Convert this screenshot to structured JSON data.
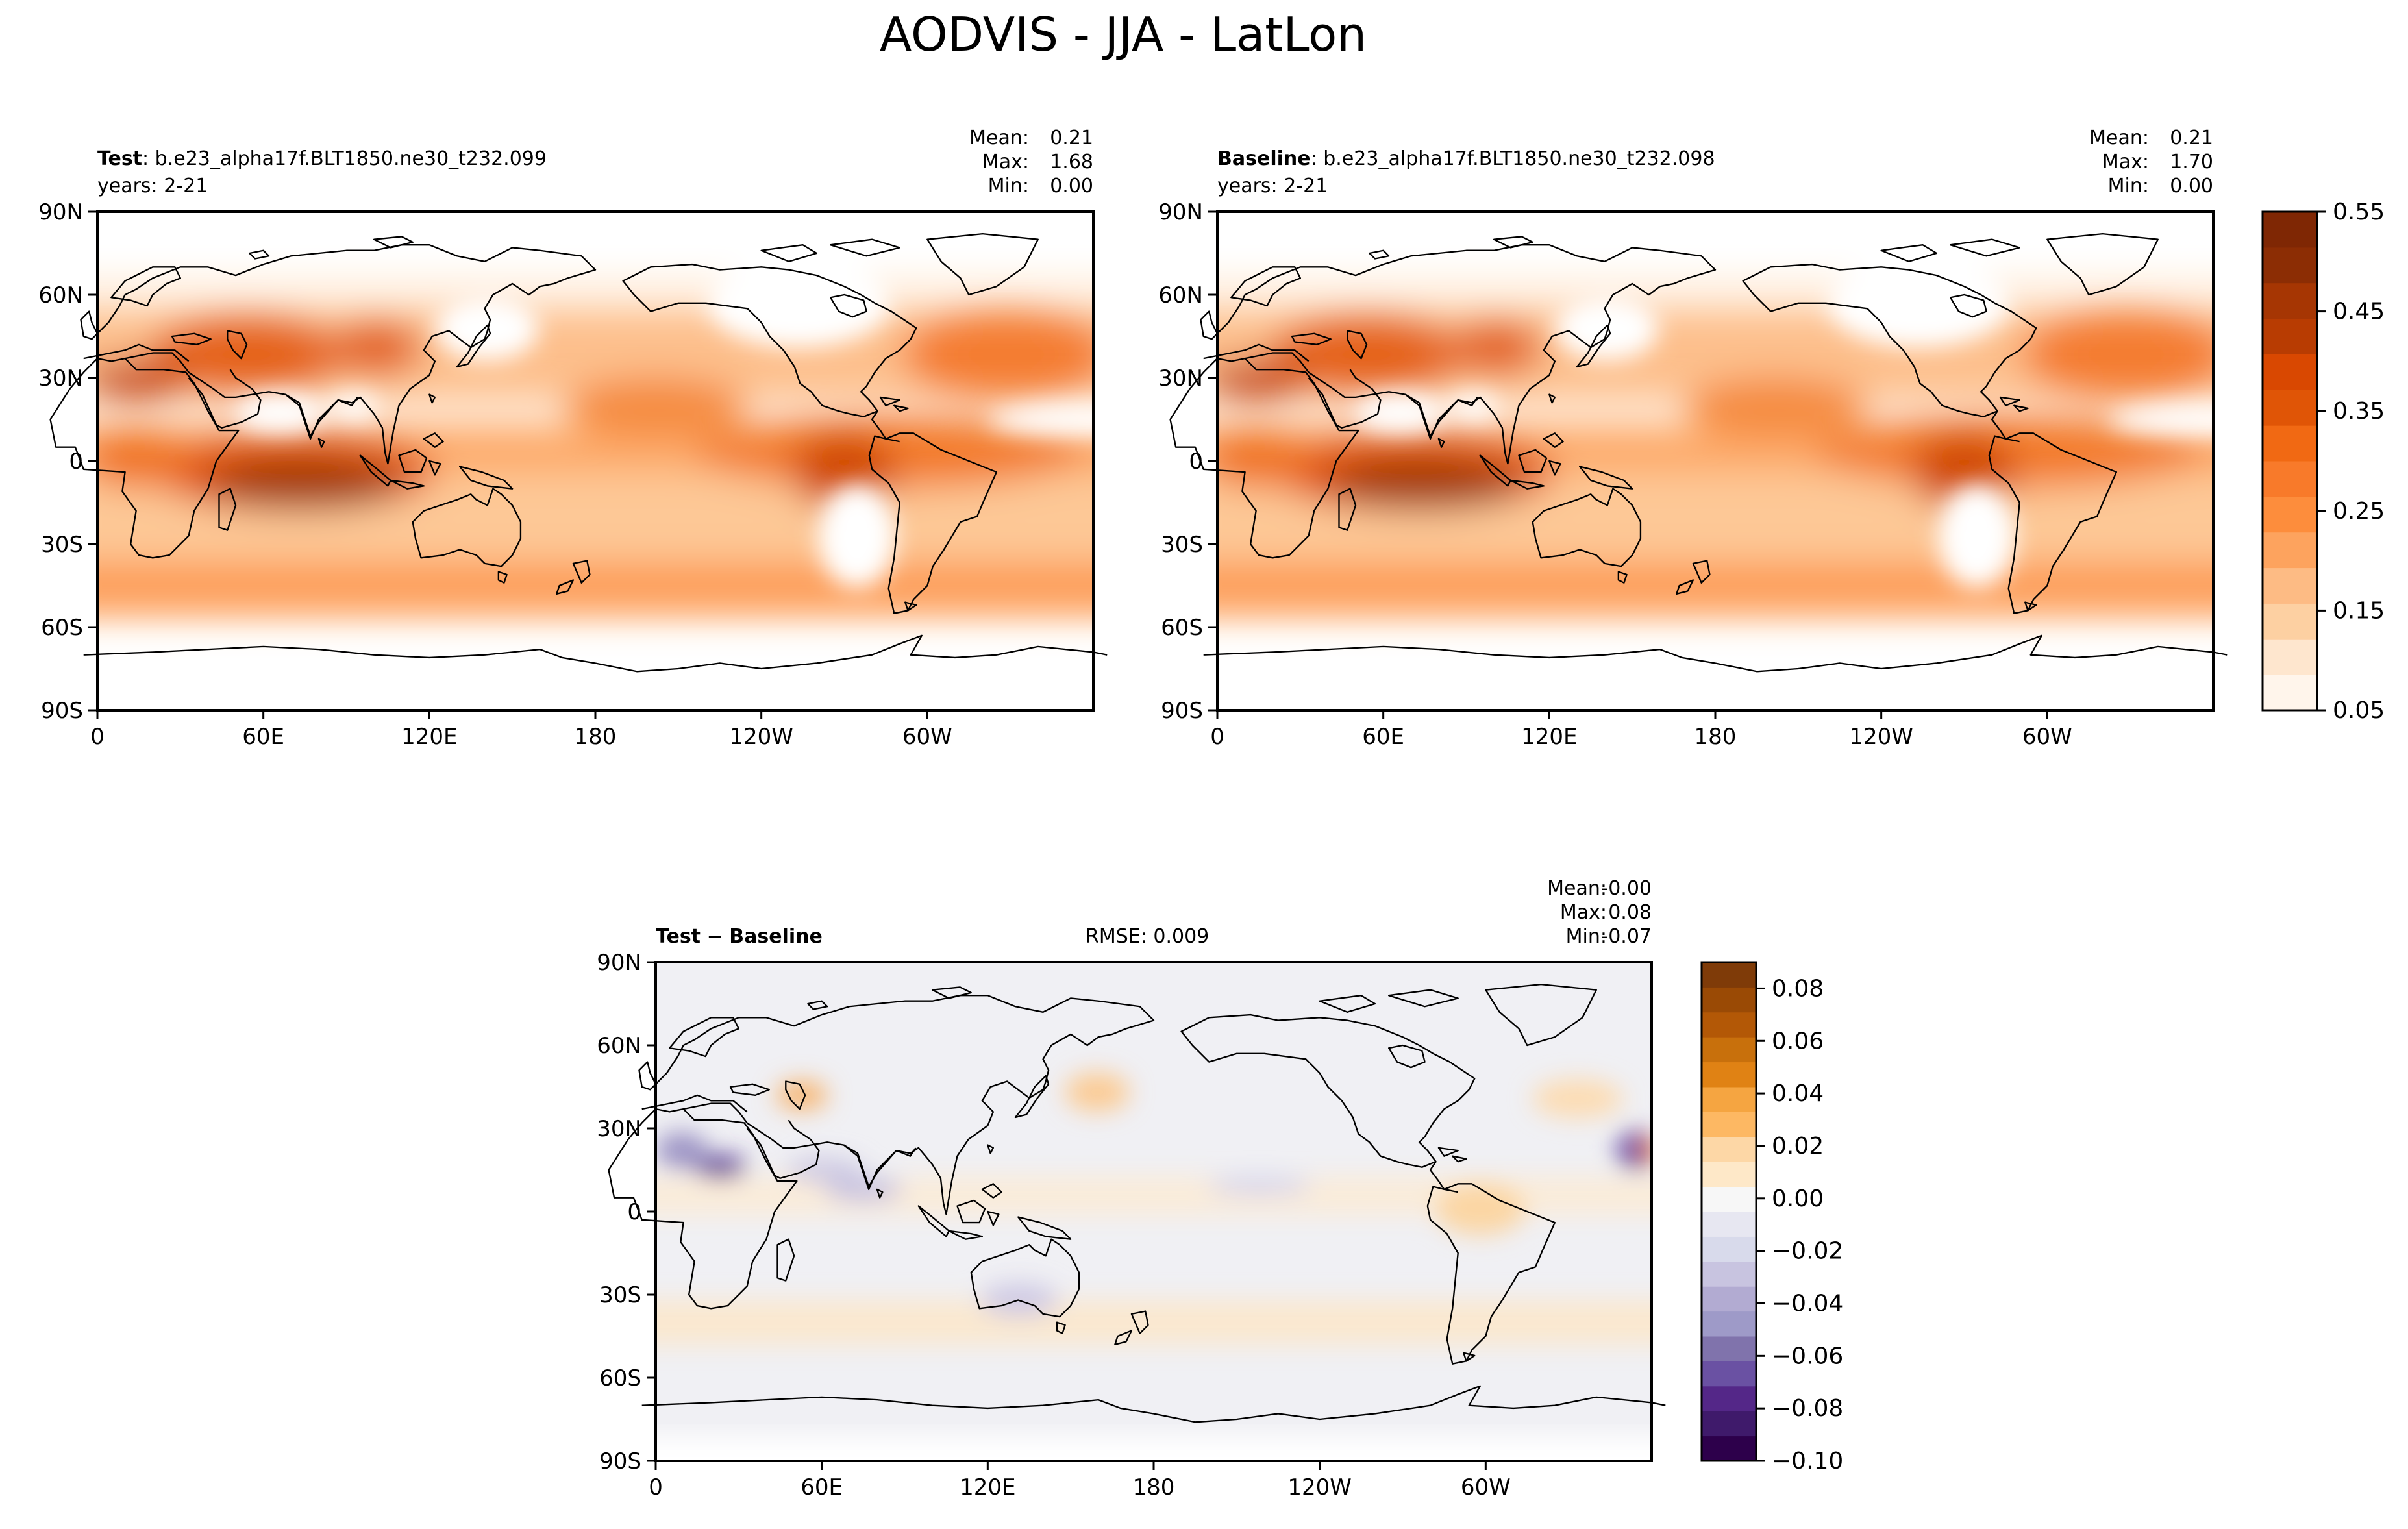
{
  "figure": {
    "title": "AODVIS - JJA - LatLon"
  },
  "chart_data": [
    {
      "id": "test",
      "type": "heatmap",
      "map_projection": "plate-carree",
      "label_bold": "Test",
      "label_rest": ": b.e23_alpha17f.BLT1850.ne30_t232.099",
      "years": "years: 2-21",
      "stats": {
        "mean_label": "Mean:",
        "mean": "0.21",
        "max_label": "Max:",
        "max": "1.68",
        "min_label": "Min:",
        "min": "0.00"
      },
      "x_ticks": [
        "0",
        "60E",
        "120E",
        "180",
        "120W",
        "60W"
      ],
      "y_ticks": [
        "90N",
        "60N",
        "30N",
        "0",
        "30S",
        "60S",
        "90S"
      ],
      "lon_range": [
        0,
        360
      ],
      "lat_range": [
        -90,
        90
      ],
      "colormap": "Oranges"
    },
    {
      "id": "baseline",
      "type": "heatmap",
      "map_projection": "plate-carree",
      "label_bold": "Baseline",
      "label_rest": ": b.e23_alpha17f.BLT1850.ne30_t232.098",
      "years": "years: 2-21",
      "stats": {
        "mean_label": "Mean:",
        "mean": "0.21",
        "max_label": "Max:",
        "max": "1.70",
        "min_label": "Min:",
        "min": "0.00"
      },
      "x_ticks": [
        "0",
        "60E",
        "120E",
        "180",
        "120W",
        "60W"
      ],
      "y_ticks": [
        "90N",
        "60N",
        "30N",
        "0",
        "30S",
        "60S",
        "90S"
      ],
      "lon_range": [
        0,
        360
      ],
      "lat_range": [
        -90,
        90
      ],
      "colormap": "Oranges"
    },
    {
      "id": "diff",
      "type": "heatmap",
      "map_projection": "plate-carree",
      "label_bold_a": "Test",
      "label_op": " − ",
      "label_bold_b": "Baseline",
      "rmse": "RMSE: 0.009",
      "stats": {
        "mean_label": "Mean:",
        "mean": "-0.00",
        "max_label": "Max:",
        "max": "0.08",
        "min_label": "Min:",
        "min": "-0.07"
      },
      "x_ticks": [
        "0",
        "60E",
        "120E",
        "180",
        "120W",
        "60W"
      ],
      "y_ticks": [
        "90N",
        "60N",
        "30N",
        "0",
        "30S",
        "60S",
        "90S"
      ],
      "lon_range": [
        0,
        360
      ],
      "lat_range": [
        -90,
        90
      ],
      "colormap": "PuOr_r"
    }
  ],
  "colorbars": {
    "main": {
      "ticks": [
        "0.55",
        "0.45",
        "0.35",
        "0.25",
        "0.15",
        "0.05"
      ],
      "range": [
        0.05,
        0.55
      ],
      "colors": [
        "#fff5eb",
        "#fee6ce",
        "#fdd0a2",
        "#fdbb84",
        "#fda35e",
        "#fd8d3c",
        "#f87a2a",
        "#f16913",
        "#e05506",
        "#d94801",
        "#b83c02",
        "#a63603",
        "#8c2d04",
        "#7f2704"
      ]
    },
    "diff": {
      "ticks": [
        "0.08",
        "0.06",
        "0.04",
        "0.02",
        "0.00",
        "−0.02",
        "−0.04",
        "−0.06",
        "−0.08",
        "−0.10"
      ],
      "range": [
        -0.1,
        0.09
      ],
      "colors": [
        "#2d004b",
        "#3f1a6b",
        "#542788",
        "#6a51a3",
        "#8073ac",
        "#9e9ac8",
        "#b2abd2",
        "#c8c4e0",
        "#d8daeb",
        "#e7e7f1",
        "#f7f7f7",
        "#fee8c8",
        "#fdd7a6",
        "#fdb863",
        "#f5a541",
        "#e08214",
        "#c8700c",
        "#b35806",
        "#9a4a05",
        "#7f3b08"
      ]
    }
  }
}
